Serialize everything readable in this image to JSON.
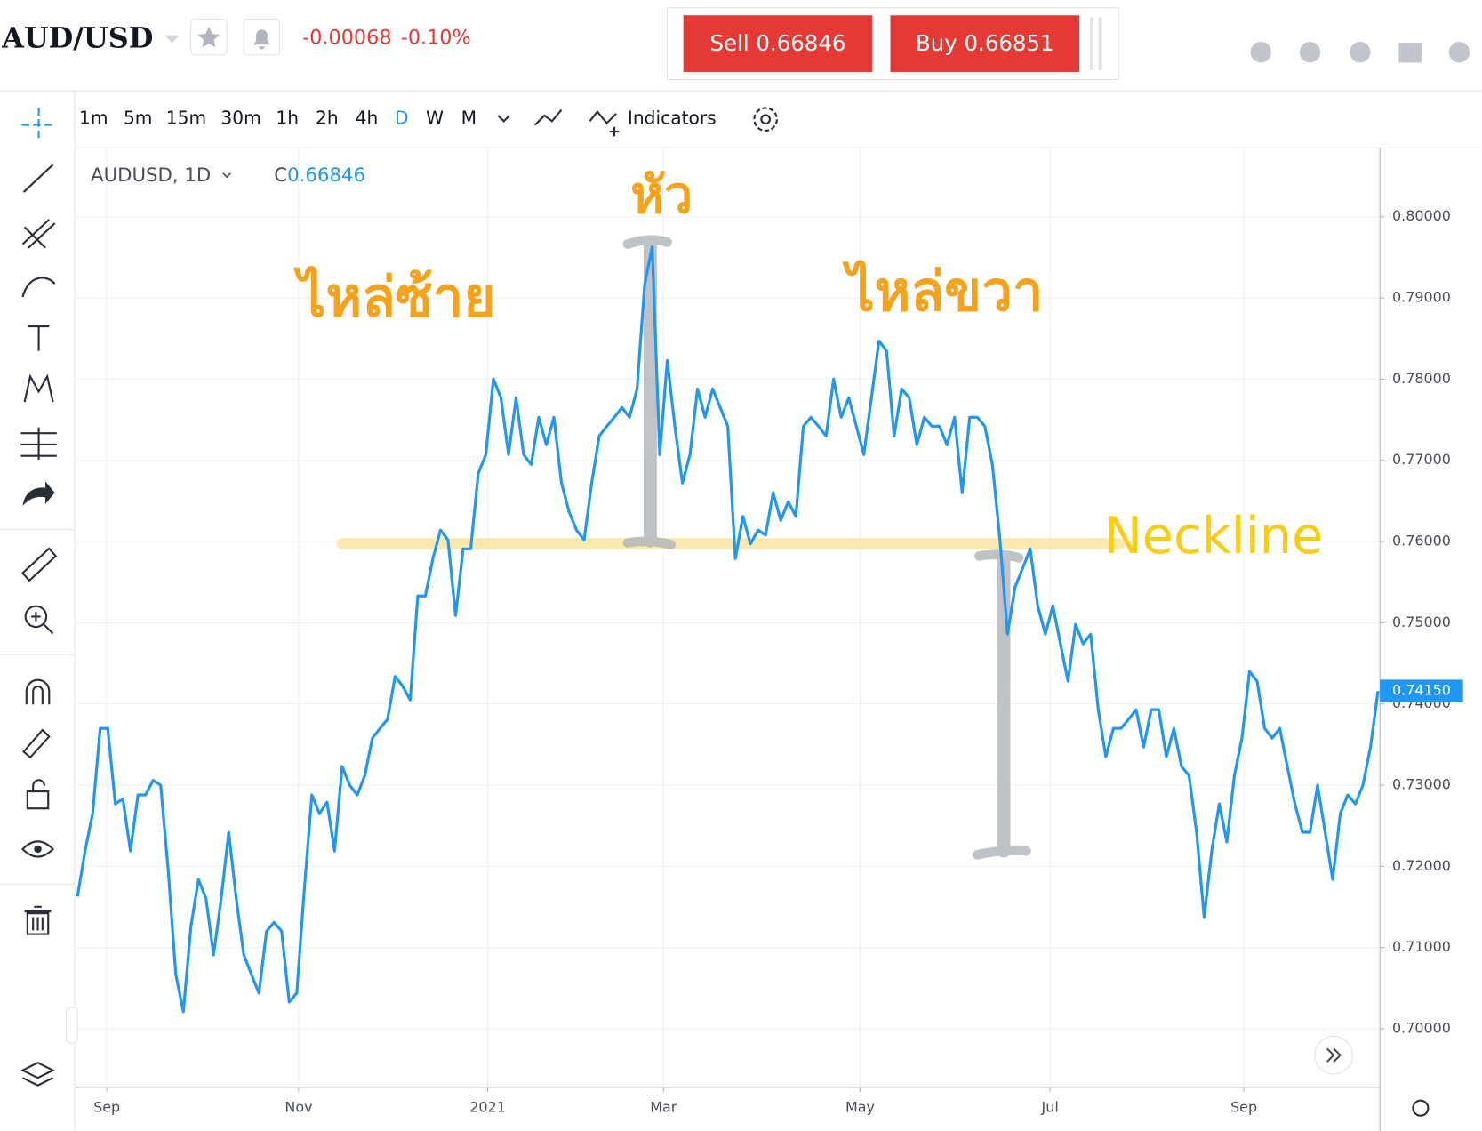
{
  "header": {
    "symbol": "AUD/USD",
    "change": "-0.00068",
    "change_pct": "-0.10%",
    "sell": "Sell 0.66846",
    "buy": "Buy 0.66851"
  },
  "toolbar": {
    "timeframes": [
      "1m",
      "5m",
      "15m",
      "30m",
      "1h",
      "2h",
      "4h",
      "D",
      "W",
      "M"
    ],
    "indicators": "Indicators"
  },
  "legend": {
    "symbol": "AUDUSD, 1D",
    "close_label": "C",
    "close_value": "0.66846"
  },
  "annotations": {
    "head": "หัว",
    "left_shoulder": "ไหล่ซ้าย",
    "right_shoulder": "ไหล่ขวา",
    "neckline": "Neckline"
  },
  "last_price_label": "0.74150",
  "chart_data": {
    "type": "line",
    "series": [
      {
        "name": "AUDUSD",
        "color": "#2196f3",
        "values": [
          0.7163,
          0.7219,
          0.7265,
          0.737,
          0.737,
          0.7277,
          0.7283,
          0.7219,
          0.7288,
          0.7288,
          0.7306,
          0.73,
          0.7195,
          0.7067,
          0.7021,
          0.7126,
          0.7184,
          0.716,
          0.7091,
          0.716,
          0.7242,
          0.716,
          0.7091,
          0.7067,
          0.7044,
          0.712,
          0.7131,
          0.712,
          0.7033,
          0.7044,
          0.7172,
          0.7288,
          0.7265,
          0.7279,
          0.7219,
          0.7323,
          0.73,
          0.7288,
          0.7312,
          0.7358,
          0.737,
          0.7381,
          0.7434,
          0.7422,
          0.7405,
          0.7533,
          0.7533,
          0.7579,
          0.7614,
          0.7602,
          0.7509,
          0.7591,
          0.7591,
          0.7684,
          0.7707,
          0.78,
          0.7777,
          0.7707,
          0.7777,
          0.7707,
          0.7695,
          0.7753,
          0.7719,
          0.7753,
          0.7672,
          0.7637,
          0.7614,
          0.7602,
          0.7672,
          0.773,
          0.7742,
          0.7753,
          0.7765,
          0.7753,
          0.7788,
          0.7916,
          0.7963,
          0.7707,
          0.7823,
          0.7742,
          0.7672,
          0.7707,
          0.7788,
          0.7753,
          0.7788,
          0.7765,
          0.7742,
          0.7579,
          0.7631,
          0.7597,
          0.7614,
          0.7608,
          0.766,
          0.7626,
          0.7649,
          0.7631,
          0.7742,
          0.7753,
          0.7742,
          0.773,
          0.78,
          0.7753,
          0.7777,
          0.7742,
          0.7707,
          0.7777,
          0.7847,
          0.7835,
          0.773,
          0.7788,
          0.7777,
          0.7719,
          0.7753,
          0.7742,
          0.7742,
          0.7719,
          0.7753,
          0.766,
          0.7753,
          0.7753,
          0.7742,
          0.7695,
          0.7602,
          0.7486,
          0.7544,
          0.7567,
          0.7591,
          0.7521,
          0.7486,
          0.7521,
          0.7474,
          0.7428,
          0.7498,
          0.7474,
          0.7486,
          0.7393,
          0.7335,
          0.737,
          0.737,
          0.7381,
          0.7393,
          0.7347,
          0.7393,
          0.7393,
          0.7335,
          0.737,
          0.7323,
          0.7312,
          0.7242,
          0.7137,
          0.7219,
          0.7277,
          0.723,
          0.7312,
          0.7358,
          0.744,
          0.7428,
          0.737,
          0.7358,
          0.737,
          0.7323,
          0.7277,
          0.7242,
          0.7242,
          0.73,
          0.7242,
          0.7184,
          0.7265,
          0.7288,
          0.7277,
          0.73,
          0.7347,
          0.7416
        ]
      }
    ],
    "xlim": [
      -0.25,
      172.25
    ],
    "xticks": [
      {
        "value": 3.875,
        "label": "Sep"
      },
      {
        "value": 29.25,
        "label": "Nov"
      },
      {
        "value": 54.25,
        "label": "2021"
      },
      {
        "value": 77.5,
        "label": "Mar"
      },
      {
        "value": 103.5,
        "label": "May"
      },
      {
        "value": 128.625,
        "label": "Jul"
      },
      {
        "value": 154.25,
        "label": "Sep"
      }
    ],
    "ylim": [
      0.6928,
      0.8085
    ],
    "yticks": [
      {
        "value": 0.7,
        "label": "0.70000"
      },
      {
        "value": 0.71,
        "label": "0.71000"
      },
      {
        "value": 0.72,
        "label": "0.72000"
      },
      {
        "value": 0.73,
        "label": "0.73000"
      },
      {
        "value": 0.74,
        "label": "0.74000"
      },
      {
        "value": 0.75,
        "label": "0.75000"
      },
      {
        "value": 0.76,
        "label": "0.76000"
      },
      {
        "value": 0.77,
        "label": "0.77000"
      },
      {
        "value": 0.78,
        "label": "0.78000"
      },
      {
        "value": 0.79,
        "label": "0.79000"
      },
      {
        "value": 0.8,
        "label": "0.80000"
      }
    ],
    "grid": true
  }
}
